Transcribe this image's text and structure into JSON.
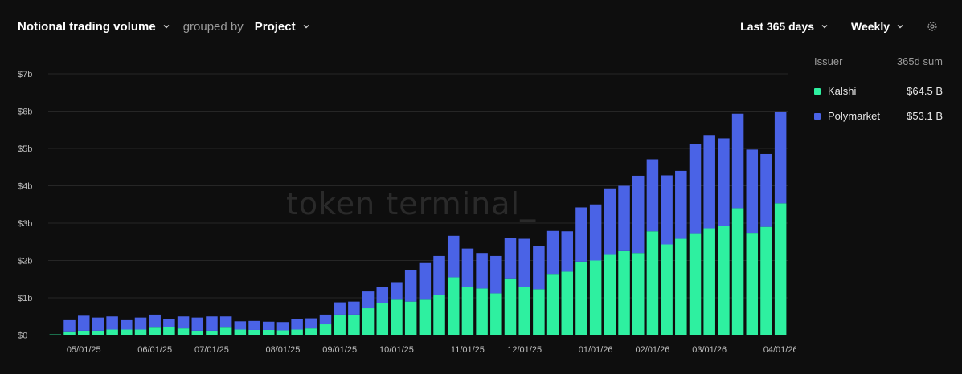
{
  "header": {
    "metric_label": "Notional trading volume",
    "grouped_by_text": "grouped by",
    "group_label": "Project"
  },
  "controls": {
    "range_label": "Last 365 days",
    "interval_label": "Weekly",
    "settings_icon": "gear-icon"
  },
  "watermark": "token terminal_",
  "legend": {
    "header_left": "Issuer",
    "header_right": "365d sum",
    "items": [
      {
        "name": "Kalshi",
        "value": "$64.5 B",
        "color": "#2ef0a0"
      },
      {
        "name": "Polymarket",
        "value": "$53.1 B",
        "color": "#4a63e6"
      }
    ]
  },
  "colors": {
    "background": "#0e0e0e",
    "gridline": "#262626",
    "kalshi": "#2ef0a0",
    "polymarket": "#4a63e6"
  },
  "chart_data": {
    "type": "bar",
    "stacked": true,
    "ylim": [
      0,
      7
    ],
    "yticks": [
      "$0",
      "$1b",
      "$2b",
      "$3b",
      "$4b",
      "$5b",
      "$6b",
      "$7b"
    ],
    "yunit": "billions USD",
    "xtick_labels": [
      "05/01/25",
      "06/01/25",
      "07/01/25",
      "08/01/25",
      "09/01/25",
      "10/01/25",
      "11/01/25",
      "12/01/25",
      "01/01/26",
      "02/01/26",
      "03/01/26",
      "04/01/26"
    ],
    "xtick_week_index": [
      2,
      7,
      11,
      16,
      20,
      24,
      29,
      33,
      38,
      42,
      46,
      51
    ],
    "grid": true,
    "series": [
      {
        "name": "Kalshi",
        "values": [
          0.02,
          0.08,
          0.12,
          0.12,
          0.15,
          0.15,
          0.15,
          0.2,
          0.22,
          0.18,
          0.12,
          0.12,
          0.2,
          0.15,
          0.14,
          0.14,
          0.13,
          0.15,
          0.18,
          0.29,
          0.55,
          0.55,
          0.72,
          0.85,
          0.95,
          0.9,
          0.95,
          1.07,
          1.55,
          1.3,
          1.25,
          1.12,
          1.5,
          1.3,
          1.23,
          1.62,
          1.7,
          1.97,
          2.0,
          2.15,
          2.25,
          2.2,
          2.78,
          2.43,
          2.58,
          2.73,
          2.86,
          2.92,
          3.4,
          2.74,
          2.9,
          3.53
        ]
      },
      {
        "name": "Polymarket",
        "values": [
          0.0,
          0.32,
          0.4,
          0.35,
          0.35,
          0.25,
          0.32,
          0.35,
          0.22,
          0.32,
          0.35,
          0.38,
          0.3,
          0.22,
          0.24,
          0.22,
          0.22,
          0.27,
          0.27,
          0.26,
          0.33,
          0.35,
          0.45,
          0.45,
          0.47,
          0.85,
          0.98,
          1.05,
          1.11,
          1.02,
          0.95,
          1.0,
          1.1,
          1.28,
          1.15,
          1.17,
          1.08,
          1.45,
          1.5,
          1.78,
          1.75,
          2.07,
          1.93,
          1.85,
          1.82,
          2.38,
          2.5,
          2.35,
          2.53,
          2.23,
          1.95,
          2.46
        ]
      }
    ]
  }
}
